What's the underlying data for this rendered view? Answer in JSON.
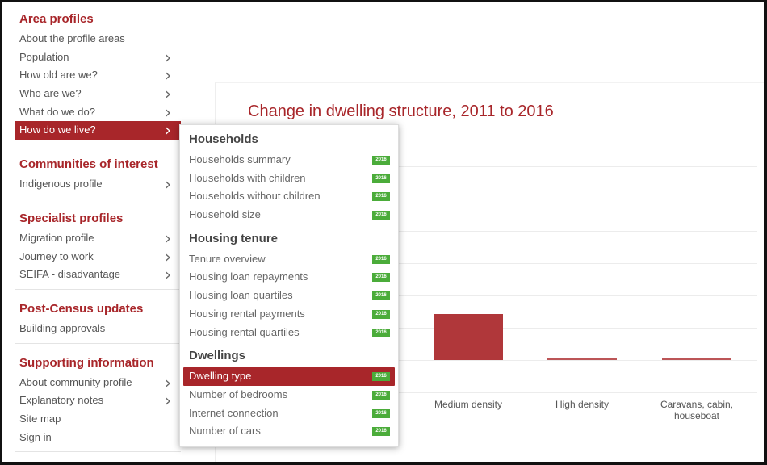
{
  "nav": {
    "sections": [
      {
        "heading": "Area profiles",
        "items": [
          {
            "label": "About the profile areas",
            "chevron": false
          },
          {
            "label": "Population",
            "chevron": true
          },
          {
            "label": "How old are we?",
            "chevron": true
          },
          {
            "label": "Who are we?",
            "chevron": true
          },
          {
            "label": "What do we do?",
            "chevron": true
          },
          {
            "label": "How do we live?",
            "chevron": true,
            "active": true
          }
        ]
      },
      {
        "heading": "Communities of interest",
        "items": [
          {
            "label": "Indigenous profile",
            "chevron": true
          }
        ]
      },
      {
        "heading": "Specialist profiles",
        "items": [
          {
            "label": "Migration profile",
            "chevron": true
          },
          {
            "label": "Journey to work",
            "chevron": true
          },
          {
            "label": "SEIFA - disadvantage",
            "chevron": true
          }
        ]
      },
      {
        "heading": "Post-Census updates",
        "items": [
          {
            "label": "Building approvals",
            "chevron": false
          }
        ]
      },
      {
        "heading": "Supporting information",
        "items": [
          {
            "label": "About community profile",
            "chevron": true
          },
          {
            "label": "Explanatory notes",
            "chevron": true
          },
          {
            "label": "Site map",
            "chevron": false
          },
          {
            "label": "Sign in",
            "chevron": false
          }
        ]
      }
    ]
  },
  "menu": {
    "badge_text": "2016",
    "badge_color": "#4bac3a",
    "groups": [
      {
        "title": "Households",
        "items": [
          "Households summary",
          "Households with children",
          "Households without children",
          "Household size"
        ]
      },
      {
        "title": "Housing tenure",
        "items": [
          "Tenure overview",
          "Housing loan repayments",
          "Housing loan quartiles",
          "Housing rental payments",
          "Housing rental quartiles"
        ]
      },
      {
        "title": "Dwellings",
        "items": [
          "Dwelling type",
          "Number of bedrooms",
          "Internet connection",
          "Number of cars"
        ],
        "active_item": "Dwelling type"
      }
    ]
  },
  "chart": {
    "title": "Change in dwelling structure, 2011 to 2016",
    "bar_color": "#b0373a",
    "accent_color": "#a8262a"
  },
  "chart_data": {
    "type": "bar",
    "title": "Change in dwelling structure, 2011 to 2016",
    "categories": [
      "Medium density",
      "High density",
      "Caravans, cabin, houseboat"
    ],
    "values": [
      1.0,
      0.06,
      0.02
    ],
    "xlabel": "",
    "ylabel": ""
  }
}
